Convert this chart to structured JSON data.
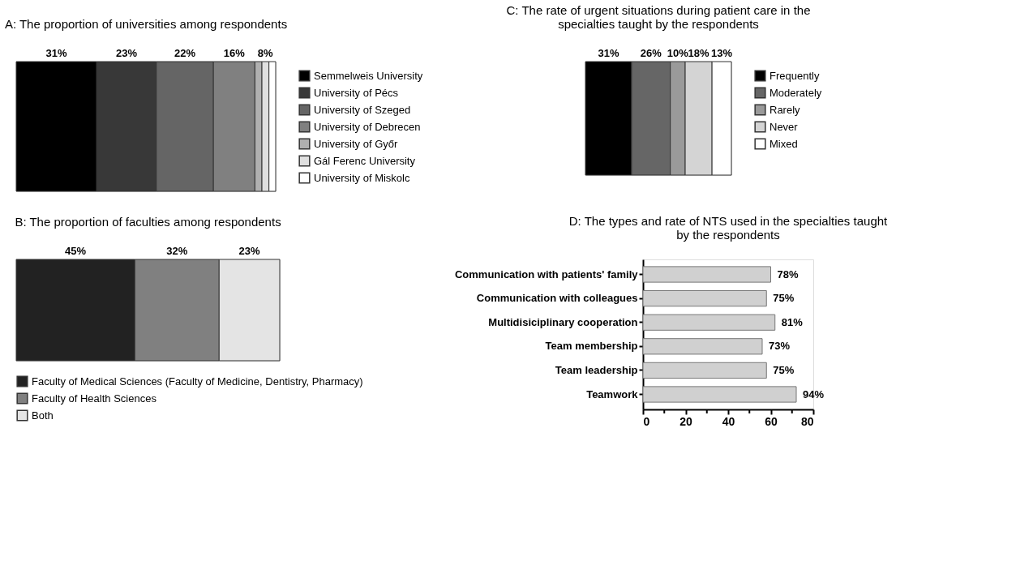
{
  "chart_data": [
    {
      "type": "bar",
      "title": "A: The proportion of universities among respondents",
      "orientation": "horizontal",
      "stacked": true,
      "categories": [
        null
      ],
      "tick_labels": false,
      "legend": "right",
      "annotations": [
        "8%"
      ],
      "series": [
        {
          "name": "Semmelweis University",
          "color": "#000000",
          "values": [
            31
          ],
          "value_labels": [
            "31%"
          ]
        },
        {
          "name": "University of Pécs",
          "color": "#383838",
          "values": [
            23
          ],
          "value_labels": [
            "23%"
          ]
        },
        {
          "name": "University of Szeged",
          "color": "#656565",
          "values": [
            22
          ],
          "value_labels": [
            "22%"
          ]
        },
        {
          "name": "University of Debrecen",
          "color": "#808080",
          "values": [
            16
          ],
          "value_labels": [
            "16%"
          ]
        },
        {
          "name": "University of Győr",
          "color": "#b0b0b0",
          "values": [
            2.7
          ],
          "value_labels": [
            null
          ]
        },
        {
          "name": "Gál Ferenc University",
          "color": "#e0e0e0",
          "values": [
            2.7
          ],
          "value_labels": [
            null
          ]
        },
        {
          "name": "University of Miskolc",
          "color": "#ffffff",
          "values": [
            2.6
          ],
          "value_labels": [
            null
          ]
        }
      ]
    },
    {
      "type": "bar",
      "title": "C: The rate of urgent situations during patient care in the specialties taught by the respondents",
      "orientation": "horizontal",
      "stacked": true,
      "categories": [
        null
      ],
      "tick_labels": false,
      "legend": "right",
      "series": [
        {
          "name": "Frequently",
          "color": "#000000",
          "values": [
            31
          ],
          "value_labels": [
            "31%"
          ]
        },
        {
          "name": "Moderately",
          "color": "#666666",
          "values": [
            26
          ],
          "value_labels": [
            "26%"
          ]
        },
        {
          "name": "Rarely",
          "color": "#9a9a9a",
          "values": [
            10
          ],
          "value_labels": [
            "10%"
          ]
        },
        {
          "name": "Never",
          "color": "#d4d4d4",
          "values": [
            18
          ],
          "value_labels": [
            "18%"
          ]
        },
        {
          "name": "Mixed",
          "color": "#ffffff",
          "values": [
            13
          ],
          "value_labels": [
            "13%"
          ]
        }
      ]
    },
    {
      "type": "bar",
      "title": "B: The proportion of faculties among respondents",
      "orientation": "horizontal",
      "stacked": true,
      "categories": [
        null
      ],
      "tick_labels": false,
      "legend": "bottom",
      "series": [
        {
          "name": "Faculty of Medical Sciences (Faculty of Medicine, Dentistry, Pharmacy)",
          "color": "#222222",
          "values": [
            45
          ],
          "value_labels": [
            "45%"
          ]
        },
        {
          "name": "Faculty of Health Sciences",
          "color": "#808080",
          "values": [
            32
          ],
          "value_labels": [
            "32%"
          ]
        },
        {
          "name": "Both",
          "color": "#e4e4e4",
          "values": [
            23
          ],
          "value_labels": [
            "23%"
          ]
        }
      ]
    },
    {
      "type": "bar",
      "title": "D: The types and rate of NTS used in the specialties taught by the respondents",
      "orientation": "horizontal",
      "grid": false,
      "categories": [
        "Communication with patients' family",
        "Communication with colleagues",
        "Multidisiciplinary cooperation",
        "Team membership",
        "Team leadership",
        "Teamwork"
      ],
      "series": [
        {
          "color": "#d0d0d0",
          "values": [
            60,
            58,
            62,
            56,
            58,
            72
          ]
        }
      ],
      "annotations": [
        {
          "text": "78%",
          "x": 60,
          "y": "Communication with patients' family"
        },
        {
          "text": "75%",
          "x": 58,
          "y": "Communication with colleagues"
        },
        {
          "text": "81%",
          "x": 62,
          "y": "Multidisiciplinary cooperation"
        },
        {
          "text": "73%",
          "x": 56,
          "y": "Team membership"
        },
        {
          "text": "75%",
          "x": 58,
          "y": "Team leadership"
        },
        {
          "text": "94%",
          "x": 72,
          "y": "Teamwork"
        }
      ],
      "xlim": [
        0,
        80
      ],
      "xticks": [
        0,
        {
          "value": 10,
          "label": null
        },
        20,
        {
          "value": 30,
          "label": null
        },
        40,
        {
          "value": 50,
          "label": null
        },
        60,
        {
          "value": 70,
          "label": null
        },
        80
      ]
    }
  ]
}
